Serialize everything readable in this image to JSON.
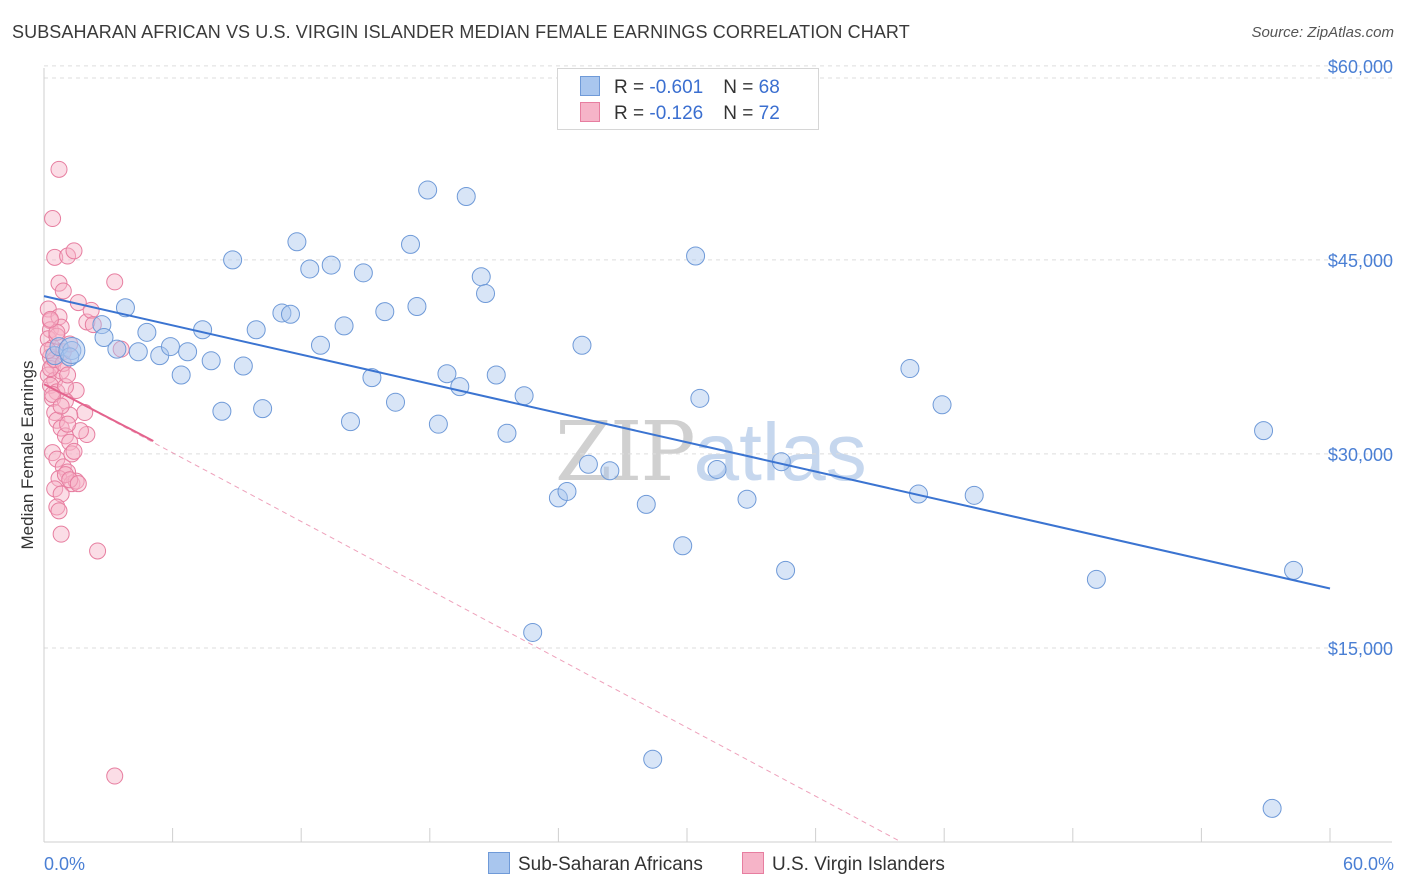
{
  "title": "SUBSAHARAN AFRICAN VS U.S. VIRGIN ISLANDER MEDIAN FEMALE EARNINGS CORRELATION CHART",
  "source": "Source: ZipAtlas.com",
  "watermark": {
    "part1": "ZIP",
    "part2": "atlas"
  },
  "legend": {
    "rows": [
      {
        "r_label": "R = ",
        "r_value": "-0.601",
        "n_label": "N = ",
        "n_value": "68"
      },
      {
        "r_label": "R = ",
        "r_value": "-0.126",
        "n_label": "N = ",
        "n_value": "72"
      }
    ]
  },
  "colors": {
    "blue_fill": "#a9c6ee",
    "blue_stroke": "#6f9ad8",
    "blue_line": "#3b74d1",
    "pink_fill": "#f6b4c8",
    "pink_stroke": "#e77ea0",
    "pink_line": "#e3638d",
    "grid": "#dddddd",
    "tick_text": "#4a7fd4"
  },
  "chart_data": {
    "type": "scatter",
    "title": "SUBSAHARAN AFRICAN VS U.S. VIRGIN ISLANDER MEDIAN FEMALE EARNINGS CORRELATION CHART",
    "xlabel": "",
    "ylabel": "Median Female Earnings",
    "xlim": [
      0,
      60
    ],
    "ylim": [
      0,
      62000
    ],
    "x_tick_labels": [
      "0.0%",
      "60.0%"
    ],
    "y_ticks": [
      15000,
      30000,
      45000,
      60000
    ],
    "y_tick_labels": [
      "$15,000",
      "$30,000",
      "$45,000",
      "$60,000"
    ],
    "grid": true,
    "series": [
      {
        "name": "Sub-Saharan Africans",
        "r": -0.601,
        "n": 68,
        "trend": {
          "x": [
            0,
            60
          ],
          "y": [
            42200,
            19600
          ]
        },
        "points": [
          {
            "x": 0.5,
            "y": 37600
          },
          {
            "x": 0.7,
            "y": 38300
          },
          {
            "x": 1.3,
            "y": 38000
          },
          {
            "x": 1.2,
            "y": 37500
          },
          {
            "x": 2.7,
            "y": 40000
          },
          {
            "x": 2.8,
            "y": 39000
          },
          {
            "x": 3.4,
            "y": 38100
          },
          {
            "x": 3.8,
            "y": 41300
          },
          {
            "x": 4.4,
            "y": 37900
          },
          {
            "x": 4.8,
            "y": 39400
          },
          {
            "x": 5.4,
            "y": 37600
          },
          {
            "x": 5.9,
            "y": 38300
          },
          {
            "x": 6.4,
            "y": 36100
          },
          {
            "x": 6.7,
            "y": 37900
          },
          {
            "x": 7.4,
            "y": 39600
          },
          {
            "x": 7.8,
            "y": 37200
          },
          {
            "x": 8.3,
            "y": 33300
          },
          {
            "x": 8.8,
            "y": 45000
          },
          {
            "x": 9.3,
            "y": 36800
          },
          {
            "x": 9.9,
            "y": 39600
          },
          {
            "x": 10.2,
            "y": 33500
          },
          {
            "x": 11.1,
            "y": 40900
          },
          {
            "x": 11.5,
            "y": 40800
          },
          {
            "x": 11.8,
            "y": 46400
          },
          {
            "x": 12.4,
            "y": 44300
          },
          {
            "x": 12.9,
            "y": 38400
          },
          {
            "x": 13.4,
            "y": 44600
          },
          {
            "x": 14.0,
            "y": 39900
          },
          {
            "x": 14.3,
            "y": 32500
          },
          {
            "x": 14.9,
            "y": 44000
          },
          {
            "x": 15.3,
            "y": 35900
          },
          {
            "x": 15.9,
            "y": 41000
          },
          {
            "x": 16.4,
            "y": 34000
          },
          {
            "x": 17.1,
            "y": 46200
          },
          {
            "x": 17.4,
            "y": 41400
          },
          {
            "x": 17.9,
            "y": 50400
          },
          {
            "x": 18.4,
            "y": 32300
          },
          {
            "x": 18.8,
            "y": 36200
          },
          {
            "x": 19.4,
            "y": 35200
          },
          {
            "x": 19.7,
            "y": 49900
          },
          {
            "x": 20.4,
            "y": 43700
          },
          {
            "x": 20.6,
            "y": 42400
          },
          {
            "x": 21.1,
            "y": 36100
          },
          {
            "x": 21.6,
            "y": 31600
          },
          {
            "x": 22.4,
            "y": 34500
          },
          {
            "x": 22.8,
            "y": 16200
          },
          {
            "x": 24.0,
            "y": 26600
          },
          {
            "x": 24.4,
            "y": 27100
          },
          {
            "x": 25.1,
            "y": 38400
          },
          {
            "x": 25.4,
            "y": 29200
          },
          {
            "x": 26.4,
            "y": 28700
          },
          {
            "x": 28.1,
            "y": 26100
          },
          {
            "x": 28.4,
            "y": 6400
          },
          {
            "x": 29.8,
            "y": 22900
          },
          {
            "x": 30.4,
            "y": 45300
          },
          {
            "x": 30.6,
            "y": 34300
          },
          {
            "x": 31.4,
            "y": 28800
          },
          {
            "x": 32.8,
            "y": 26500
          },
          {
            "x": 34.4,
            "y": 29400
          },
          {
            "x": 34.6,
            "y": 21000
          },
          {
            "x": 40.4,
            "y": 36600
          },
          {
            "x": 40.8,
            "y": 26900
          },
          {
            "x": 41.9,
            "y": 33800
          },
          {
            "x": 43.4,
            "y": 26800
          },
          {
            "x": 49.1,
            "y": 20300
          },
          {
            "x": 56.9,
            "y": 31800
          },
          {
            "x": 58.3,
            "y": 21000
          },
          {
            "x": 57.3,
            "y": 2600
          }
        ]
      },
      {
        "name": "U.S. Virgin Islanders",
        "r": -0.126,
        "n": 72,
        "trend": {
          "x": [
            0,
            5.1
          ],
          "y": [
            35400,
            31000
          ]
        },
        "trend_extended": {
          "x": [
            0,
            40
          ],
          "y": [
            35400,
            0
          ]
        },
        "points": [
          {
            "x": 0.2,
            "y": 41200
          },
          {
            "x": 0.3,
            "y": 40300
          },
          {
            "x": 0.3,
            "y": 39600
          },
          {
            "x": 0.2,
            "y": 38900
          },
          {
            "x": 0.4,
            "y": 38200
          },
          {
            "x": 0.3,
            "y": 37500
          },
          {
            "x": 0.4,
            "y": 36800
          },
          {
            "x": 0.2,
            "y": 36100
          },
          {
            "x": 0.5,
            "y": 35700
          },
          {
            "x": 0.3,
            "y": 35300
          },
          {
            "x": 0.6,
            "y": 34800
          },
          {
            "x": 0.4,
            "y": 34300
          },
          {
            "x": 0.7,
            "y": 40600
          },
          {
            "x": 0.8,
            "y": 39800
          },
          {
            "x": 0.6,
            "y": 39100
          },
          {
            "x": 0.9,
            "y": 37900
          },
          {
            "x": 0.8,
            "y": 36400
          },
          {
            "x": 0.5,
            "y": 45200
          },
          {
            "x": 0.4,
            "y": 48200
          },
          {
            "x": 0.7,
            "y": 43200
          },
          {
            "x": 0.9,
            "y": 42600
          },
          {
            "x": 1.1,
            "y": 45300
          },
          {
            "x": 1.4,
            "y": 45700
          },
          {
            "x": 1.6,
            "y": 41700
          },
          {
            "x": 2.0,
            "y": 40200
          },
          {
            "x": 2.2,
            "y": 41100
          },
          {
            "x": 2.3,
            "y": 40000
          },
          {
            "x": 0.7,
            "y": 52000
          },
          {
            "x": 3.3,
            "y": 43300
          },
          {
            "x": 3.6,
            "y": 38100
          },
          {
            "x": 0.5,
            "y": 33200
          },
          {
            "x": 0.6,
            "y": 32600
          },
          {
            "x": 0.8,
            "y": 32000
          },
          {
            "x": 1.0,
            "y": 31400
          },
          {
            "x": 1.2,
            "y": 30900
          },
          {
            "x": 0.4,
            "y": 30100
          },
          {
            "x": 0.6,
            "y": 29600
          },
          {
            "x": 0.9,
            "y": 29000
          },
          {
            "x": 1.1,
            "y": 28600
          },
          {
            "x": 0.7,
            "y": 28100
          },
          {
            "x": 1.3,
            "y": 27700
          },
          {
            "x": 1.5,
            "y": 27900
          },
          {
            "x": 0.5,
            "y": 27300
          },
          {
            "x": 0.8,
            "y": 26900
          },
          {
            "x": 0.6,
            "y": 25900
          },
          {
            "x": 0.7,
            "y": 25600
          },
          {
            "x": 0.8,
            "y": 23800
          },
          {
            "x": 1.9,
            "y": 33200
          },
          {
            "x": 2.0,
            "y": 31500
          },
          {
            "x": 1.7,
            "y": 31800
          },
          {
            "x": 1.5,
            "y": 34900
          },
          {
            "x": 1.0,
            "y": 34100
          },
          {
            "x": 1.2,
            "y": 33000
          },
          {
            "x": 1.1,
            "y": 32300
          },
          {
            "x": 1.3,
            "y": 30000
          },
          {
            "x": 1.4,
            "y": 30200
          },
          {
            "x": 1.0,
            "y": 28400
          },
          {
            "x": 1.2,
            "y": 28000
          },
          {
            "x": 1.6,
            "y": 27700
          },
          {
            "x": 0.3,
            "y": 36600
          },
          {
            "x": 0.5,
            "y": 37300
          },
          {
            "x": 0.2,
            "y": 38000
          },
          {
            "x": 0.6,
            "y": 39400
          },
          {
            "x": 0.9,
            "y": 37000
          },
          {
            "x": 1.0,
            "y": 35200
          },
          {
            "x": 0.4,
            "y": 34600
          },
          {
            "x": 0.8,
            "y": 33700
          },
          {
            "x": 1.1,
            "y": 36100
          },
          {
            "x": 2.5,
            "y": 22500
          },
          {
            "x": 3.3,
            "y": 5100
          },
          {
            "x": 0.3,
            "y": 40400
          },
          {
            "x": 1.2,
            "y": 38500
          }
        ]
      }
    ]
  },
  "bottom_legend": [
    "Sub-Saharan Africans",
    "U.S. Virgin Islanders"
  ]
}
